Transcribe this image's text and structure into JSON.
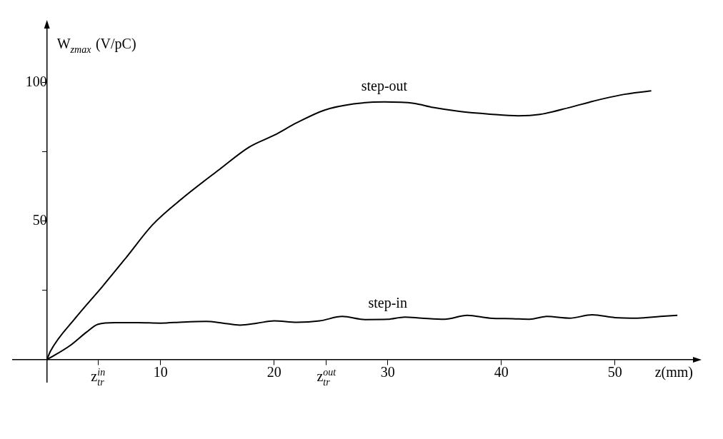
{
  "chart_data": {
    "type": "line",
    "ylabel": "W$_{zmax}$ (V/pC)",
    "xlabel": "z(mm)",
    "xlim": [
      -3,
      57
    ],
    "ylim": [
      -8,
      120
    ],
    "xticks": [
      {
        "value": 4.5,
        "label": "z$_{tr}$$^{in}$"
      },
      10,
      20,
      {
        "value": 24.6,
        "label": "z$_{tr}$$^{out}$"
      },
      30,
      40,
      50
    ],
    "yticks": [
      {
        "value": 25,
        "label": null
      },
      50,
      {
        "value": 75,
        "label": null
      },
      100
    ],
    "grid": false,
    "legend": false,
    "marker": "none",
    "line_style": "solid",
    "series": [
      {
        "name": "step-out",
        "color": "#000000",
        "x": [
          0,
          0.3,
          2.5,
          4.9,
          7,
          9.3,
          12,
          15.2,
          17.8,
          20,
          22,
          24.4,
          27,
          29.7,
          32.3,
          34,
          36.3,
          39,
          41.5,
          43.4,
          46,
          48.1,
          50.5,
          53.2
        ],
        "values": [
          0,
          3,
          15,
          26.5,
          37,
          48.7,
          58.5,
          68.7,
          76.7,
          81,
          85.5,
          90,
          92.3,
          93,
          92.5,
          91,
          89.6,
          88.6,
          88,
          88.5,
          91,
          93.3,
          95.5,
          97
        ]
      },
      {
        "name": "step-in",
        "color": "#000000",
        "x": [
          0,
          2,
          3.5,
          4.5,
          6,
          8,
          10,
          12,
          14,
          15.5,
          17,
          18.5,
          20,
          22,
          24,
          26,
          28,
          30,
          31.5,
          33,
          35,
          37,
          39,
          41,
          42.5,
          44,
          46,
          48,
          50,
          52,
          54,
          55.5
        ],
        "values": [
          0,
          5,
          10,
          12.8,
          13.4,
          13.4,
          13.2,
          13.6,
          13.8,
          13.2,
          12.5,
          13.2,
          14,
          13.5,
          14,
          15.6,
          14.5,
          14.6,
          15.4,
          15,
          14.6,
          16,
          15,
          14.8,
          14.6,
          15.6,
          15,
          16.2,
          15.2,
          15,
          15.6,
          16
        ]
      }
    ]
  }
}
